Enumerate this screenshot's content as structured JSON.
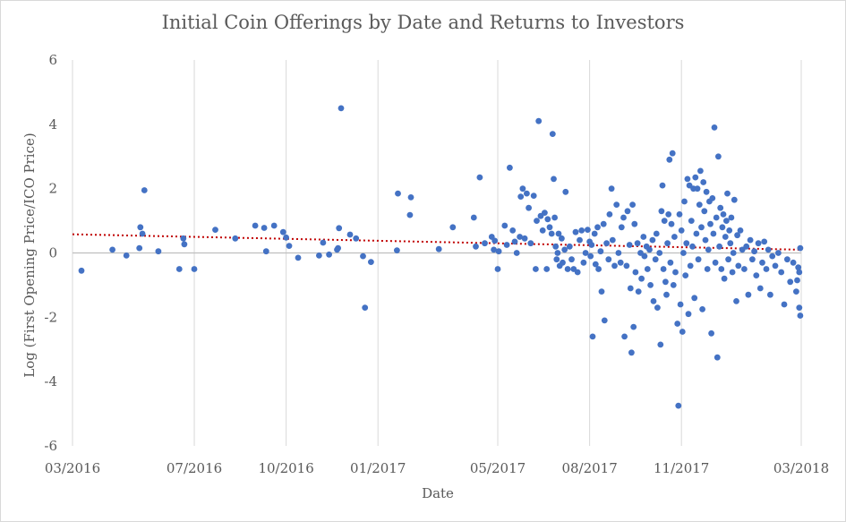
{
  "chart_data": {
    "type": "scatter",
    "title": "Initial Coin Offerings by Date and Returns to Investors",
    "xlabel": "Date",
    "ylabel": "Log (First Opening Price/ICO Price)",
    "xlim": [
      "2016-03-01",
      "2018-03-01"
    ],
    "ylim": [
      -6,
      6
    ],
    "yticks": [
      6,
      4,
      2,
      0,
      -2,
      -4,
      -6
    ],
    "xticks": [
      {
        "date": "2016-03-01",
        "label": "03/2016"
      },
      {
        "date": "2016-07-01",
        "label": "07/2016"
      },
      {
        "date": "2016-10-01",
        "label": "10/2016"
      },
      {
        "date": "2017-01-01",
        "label": "01/2017"
      },
      {
        "date": "2017-05-01",
        "label": "05/2017"
      },
      {
        "date": "2017-08-01",
        "label": "08/2017"
      },
      {
        "date": "2017-11-01",
        "label": "11/2017"
      },
      {
        "date": "2018-03-01",
        "label": "03/2018"
      }
    ],
    "grid": "vertical",
    "point_color": "#4472C4",
    "trendline": {
      "type": "linear",
      "style": "dotted",
      "color": "#C00000",
      "y_start": 0.58,
      "y_end": 0.1
    },
    "series": [
      {
        "points": [
          [
            "2016-03-10",
            -0.55
          ],
          [
            "2016-04-10",
            0.1
          ],
          [
            "2016-04-24",
            -0.08
          ],
          [
            "2016-05-08",
            0.8
          ],
          [
            "2016-05-10",
            0.6
          ],
          [
            "2016-05-12",
            1.95
          ],
          [
            "2016-05-07",
            0.15
          ],
          [
            "2016-05-26",
            0.05
          ],
          [
            "2016-06-16",
            -0.5
          ],
          [
            "2016-06-20",
            0.45
          ],
          [
            "2016-06-21",
            0.27
          ],
          [
            "2016-07-01",
            -0.5
          ],
          [
            "2016-07-22",
            0.72
          ],
          [
            "2016-08-11",
            0.45
          ],
          [
            "2016-08-31",
            0.85
          ],
          [
            "2016-09-09",
            0.78
          ],
          [
            "2016-09-11",
            0.05
          ],
          [
            "2016-09-19",
            0.85
          ],
          [
            "2016-09-28",
            0.65
          ],
          [
            "2016-10-01",
            0.48
          ],
          [
            "2016-10-04",
            0.22
          ],
          [
            "2016-10-13",
            -0.15
          ],
          [
            "2016-11-03",
            -0.08
          ],
          [
            "2016-11-07",
            0.32
          ],
          [
            "2016-11-13",
            -0.05
          ],
          [
            "2016-11-21",
            0.1
          ],
          [
            "2016-11-23",
            0.77
          ],
          [
            "2016-11-25",
            4.5
          ],
          [
            "2016-11-22",
            0.15
          ],
          [
            "2016-12-04",
            0.57
          ],
          [
            "2016-12-10",
            0.45
          ],
          [
            "2016-12-17",
            -0.1
          ],
          [
            "2016-12-19",
            -1.7
          ],
          [
            "2016-12-25",
            -0.28
          ],
          [
            "2017-01-20",
            0.08
          ],
          [
            "2017-01-21",
            1.85
          ],
          [
            "2017-02-02",
            1.18
          ],
          [
            "2017-02-03",
            1.73
          ],
          [
            "2017-03-03",
            0.12
          ],
          [
            "2017-03-17",
            0.8
          ],
          [
            "2017-04-07",
            1.1
          ],
          [
            "2017-04-09",
            0.2
          ],
          [
            "2017-04-13",
            2.35
          ],
          [
            "2017-04-18",
            0.3
          ],
          [
            "2017-04-25",
            0.5
          ],
          [
            "2017-04-27",
            0.1
          ],
          [
            "2017-04-28",
            0.38
          ],
          [
            "2017-05-01",
            -0.5
          ],
          [
            "2017-05-02",
            0.05
          ],
          [
            "2017-05-08",
            0.85
          ],
          [
            "2017-05-10",
            0.25
          ],
          [
            "2017-05-13",
            2.65
          ],
          [
            "2017-05-16",
            0.7
          ],
          [
            "2017-05-18",
            0.35
          ],
          [
            "2017-05-20",
            0.0
          ],
          [
            "2017-05-23",
            0.5
          ],
          [
            "2017-05-24",
            1.75
          ],
          [
            "2017-05-26",
            2.0
          ],
          [
            "2017-05-28",
            0.45
          ],
          [
            "2017-05-30",
            1.85
          ],
          [
            "2017-06-01",
            1.4
          ],
          [
            "2017-06-03",
            0.3
          ],
          [
            "2017-06-06",
            1.78
          ],
          [
            "2017-06-08",
            -0.5
          ],
          [
            "2017-06-09",
            1.0
          ],
          [
            "2017-06-11",
            4.1
          ],
          [
            "2017-06-13",
            1.15
          ],
          [
            "2017-06-15",
            0.7
          ],
          [
            "2017-06-17",
            1.25
          ],
          [
            "2017-06-19",
            -0.5
          ],
          [
            "2017-06-20",
            1.05
          ],
          [
            "2017-06-22",
            0.8
          ],
          [
            "2017-06-24",
            0.6
          ],
          [
            "2017-06-25",
            3.7
          ],
          [
            "2017-06-26",
            2.3
          ],
          [
            "2017-06-27",
            1.1
          ],
          [
            "2017-06-28",
            0.2
          ],
          [
            "2017-06-29",
            -0.2
          ],
          [
            "2017-06-30",
            0.0
          ],
          [
            "2017-07-01",
            0.6
          ],
          [
            "2017-07-02",
            -0.4
          ],
          [
            "2017-07-04",
            0.45
          ],
          [
            "2017-07-05",
            -0.3
          ],
          [
            "2017-07-07",
            0.1
          ],
          [
            "2017-07-08",
            1.9
          ],
          [
            "2017-07-10",
            -0.5
          ],
          [
            "2017-07-12",
            0.2
          ],
          [
            "2017-07-14",
            -0.2
          ],
          [
            "2017-07-16",
            -0.5
          ],
          [
            "2017-07-18",
            0.65
          ],
          [
            "2017-07-20",
            -0.6
          ],
          [
            "2017-07-22",
            0.4
          ],
          [
            "2017-07-24",
            0.7
          ],
          [
            "2017-07-26",
            -0.3
          ],
          [
            "2017-07-28",
            0.0
          ],
          [
            "2017-07-30",
            0.72
          ],
          [
            "2017-08-01",
            0.35
          ],
          [
            "2017-08-02",
            -0.1
          ],
          [
            "2017-08-03",
            0.25
          ],
          [
            "2017-08-04",
            -2.6
          ],
          [
            "2017-08-06",
            0.6
          ],
          [
            "2017-08-07",
            -0.35
          ],
          [
            "2017-08-09",
            0.8
          ],
          [
            "2017-08-10",
            -0.5
          ],
          [
            "2017-08-12",
            0.05
          ],
          [
            "2017-08-13",
            -1.2
          ],
          [
            "2017-08-15",
            0.9
          ],
          [
            "2017-08-16",
            -2.1
          ],
          [
            "2017-08-18",
            0.3
          ],
          [
            "2017-08-20",
            -0.2
          ],
          [
            "2017-08-21",
            1.2
          ],
          [
            "2017-08-23",
            2.0
          ],
          [
            "2017-08-24",
            0.4
          ],
          [
            "2017-08-26",
            -0.4
          ],
          [
            "2017-08-28",
            1.5
          ],
          [
            "2017-08-30",
            0.0
          ],
          [
            "2017-09-01",
            -0.3
          ],
          [
            "2017-09-02",
            0.8
          ],
          [
            "2017-09-04",
            1.1
          ],
          [
            "2017-09-05",
            -2.6
          ],
          [
            "2017-09-07",
            -0.4
          ],
          [
            "2017-09-08",
            1.3
          ],
          [
            "2017-09-10",
            0.25
          ],
          [
            "2017-09-11",
            -1.1
          ],
          [
            "2017-09-12",
            -3.1
          ],
          [
            "2017-09-13",
            1.5
          ],
          [
            "2017-09-14",
            -2.3
          ],
          [
            "2017-09-15",
            0.9
          ],
          [
            "2017-09-16",
            -0.6
          ],
          [
            "2017-09-18",
            0.3
          ],
          [
            "2017-09-19",
            -1.2
          ],
          [
            "2017-09-21",
            0.0
          ],
          [
            "2017-09-22",
            -0.8
          ],
          [
            "2017-09-24",
            0.5
          ],
          [
            "2017-09-25",
            -0.1
          ],
          [
            "2017-09-27",
            0.2
          ],
          [
            "2017-09-28",
            -0.5
          ],
          [
            "2017-09-30",
            0.1
          ],
          [
            "2017-10-01",
            -1.0
          ],
          [
            "2017-10-03",
            0.4
          ],
          [
            "2017-10-04",
            -1.5
          ],
          [
            "2017-10-06",
            -0.2
          ],
          [
            "2017-10-07",
            0.6
          ],
          [
            "2017-10-08",
            -1.7
          ],
          [
            "2017-10-10",
            0.0
          ],
          [
            "2017-10-11",
            -2.85
          ],
          [
            "2017-10-12",
            1.3
          ],
          [
            "2017-10-13",
            2.1
          ],
          [
            "2017-10-14",
            -0.5
          ],
          [
            "2017-10-15",
            1.0
          ],
          [
            "2017-10-16",
            -0.9
          ],
          [
            "2017-10-17",
            -1.3
          ],
          [
            "2017-10-18",
            0.3
          ],
          [
            "2017-10-19",
            1.2
          ],
          [
            "2017-10-20",
            2.9
          ],
          [
            "2017-10-21",
            -0.3
          ],
          [
            "2017-10-22",
            0.9
          ],
          [
            "2017-10-23",
            3.1
          ],
          [
            "2017-10-24",
            -1.0
          ],
          [
            "2017-10-25",
            0.5
          ],
          [
            "2017-10-26",
            -0.6
          ],
          [
            "2017-10-28",
            -2.2
          ],
          [
            "2017-10-29",
            -4.75
          ],
          [
            "2017-10-30",
            1.2
          ],
          [
            "2017-10-31",
            -1.6
          ],
          [
            "2017-11-01",
            0.7
          ],
          [
            "2017-11-02",
            -2.45
          ],
          [
            "2017-11-03",
            0.0
          ],
          [
            "2017-11-04",
            1.6
          ],
          [
            "2017-11-05",
            -0.7
          ],
          [
            "2017-11-06",
            0.3
          ],
          [
            "2017-11-07",
            2.3
          ],
          [
            "2017-11-08",
            -1.9
          ],
          [
            "2017-11-09",
            2.1
          ],
          [
            "2017-11-10",
            -0.4
          ],
          [
            "2017-11-11",
            1.0
          ],
          [
            "2017-11-12",
            0.2
          ],
          [
            "2017-11-13",
            2.0
          ],
          [
            "2017-11-14",
            -1.4
          ],
          [
            "2017-11-15",
            2.35
          ],
          [
            "2017-11-16",
            0.6
          ],
          [
            "2017-11-17",
            2.0
          ],
          [
            "2017-11-18",
            -0.2
          ],
          [
            "2017-11-19",
            1.5
          ],
          [
            "2017-11-20",
            2.55
          ],
          [
            "2017-11-21",
            0.8
          ],
          [
            "2017-11-22",
            -1.75
          ],
          [
            "2017-11-23",
            2.2
          ],
          [
            "2017-11-24",
            1.3
          ],
          [
            "2017-11-25",
            0.4
          ],
          [
            "2017-11-26",
            1.9
          ],
          [
            "2017-11-27",
            -0.5
          ],
          [
            "2017-11-28",
            0.1
          ],
          [
            "2017-11-29",
            1.6
          ],
          [
            "2017-11-30",
            0.9
          ],
          [
            "2017-12-01",
            -2.5
          ],
          [
            "2017-12-02",
            1.7
          ],
          [
            "2017-12-03",
            0.6
          ],
          [
            "2017-12-04",
            3.9
          ],
          [
            "2017-12-05",
            -0.3
          ],
          [
            "2017-12-06",
            1.1
          ],
          [
            "2017-12-07",
            -3.25
          ],
          [
            "2017-12-08",
            3.0
          ],
          [
            "2017-12-09",
            0.2
          ],
          [
            "2017-12-10",
            1.4
          ],
          [
            "2017-12-11",
            -0.5
          ],
          [
            "2017-12-12",
            0.8
          ],
          [
            "2017-12-13",
            1.2
          ],
          [
            "2017-12-14",
            -0.8
          ],
          [
            "2017-12-15",
            0.5
          ],
          [
            "2017-12-16",
            1.0
          ],
          [
            "2017-12-17",
            1.85
          ],
          [
            "2017-12-18",
            -0.2
          ],
          [
            "2017-12-19",
            0.7
          ],
          [
            "2017-12-20",
            0.3
          ],
          [
            "2017-12-21",
            1.1
          ],
          [
            "2017-12-22",
            -0.6
          ],
          [
            "2017-12-23",
            0.0
          ],
          [
            "2017-12-24",
            1.65
          ],
          [
            "2017-12-26",
            -1.5
          ],
          [
            "2017-12-27",
            0.55
          ],
          [
            "2017-12-28",
            -0.4
          ],
          [
            "2017-12-30",
            0.7
          ],
          [
            "2018-01-01",
            0.1
          ],
          [
            "2018-01-03",
            -0.5
          ],
          [
            "2018-01-05",
            0.2
          ],
          [
            "2018-01-07",
            -1.3
          ],
          [
            "2018-01-09",
            0.4
          ],
          [
            "2018-01-11",
            -0.2
          ],
          [
            "2018-01-13",
            0.05
          ],
          [
            "2018-01-15",
            -0.7
          ],
          [
            "2018-01-17",
            0.3
          ],
          [
            "2018-01-19",
            -1.1
          ],
          [
            "2018-01-21",
            -0.3
          ],
          [
            "2018-01-23",
            0.35
          ],
          [
            "2018-01-25",
            -0.5
          ],
          [
            "2018-01-27",
            0.1
          ],
          [
            "2018-01-29",
            -1.3
          ],
          [
            "2018-01-31",
            -0.1
          ],
          [
            "2018-02-03",
            -0.4
          ],
          [
            "2018-02-06",
            0.0
          ],
          [
            "2018-02-09",
            -0.6
          ],
          [
            "2018-02-12",
            -1.6
          ],
          [
            "2018-02-15",
            -0.2
          ],
          [
            "2018-02-18",
            -0.9
          ],
          [
            "2018-02-21",
            -0.3
          ],
          [
            "2018-02-24",
            -1.2
          ],
          [
            "2018-02-26",
            -0.45
          ],
          [
            "2018-02-27",
            -1.7
          ],
          [
            "2018-02-28",
            -1.95
          ],
          [
            "2018-02-28",
            0.15
          ],
          [
            "2018-02-27",
            -0.6
          ],
          [
            "2018-02-25",
            -0.85
          ]
        ]
      }
    ]
  }
}
